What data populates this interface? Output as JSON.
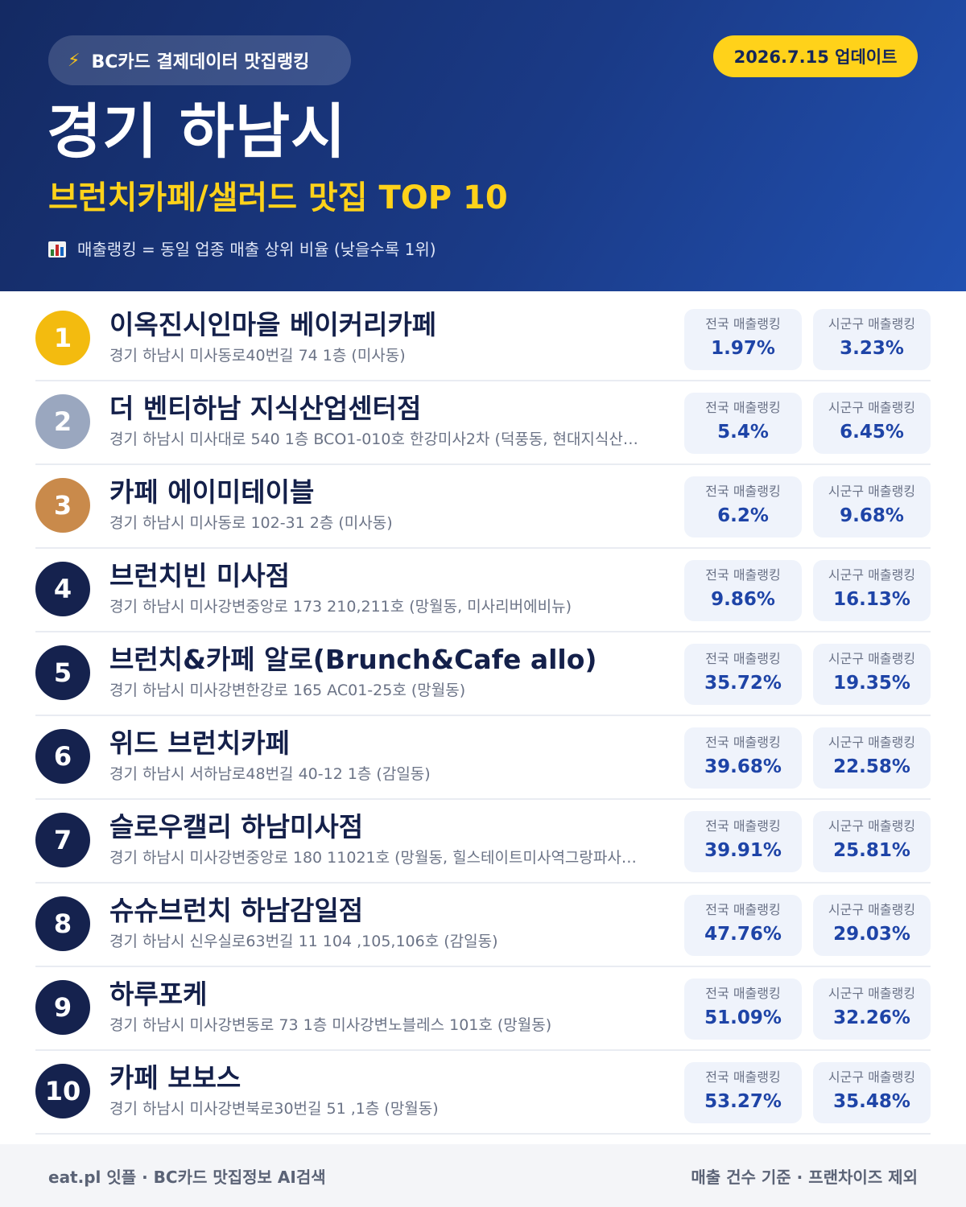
{
  "header": {
    "pill_icon": "lightning-bolt-icon",
    "pill_label": "BC카드 결제데이터 맛집랭킹",
    "update_label": "2026.7.15 업데이트",
    "city": "경기 하남시",
    "subtitle": "브런치카페/샐러드 맛집 TOP 10",
    "note_icon": "bar-chart-icon",
    "note": "매출랭킹 = 동일 업종 매출 상위 비율 (낮을수록 1위)"
  },
  "colors": {
    "header_start": "#142a63",
    "header_end": "#2150b0",
    "accent_yellow": "#ffd21a",
    "rank_gold": "#f3bb0f",
    "rank_silver": "#9aa7bf",
    "rank_bronze": "#c98a4b",
    "rank_default": "#15224e",
    "value_blue": "#1e44a7"
  },
  "stat_labels": {
    "national": "전국 매출랭킹",
    "district": "시군구 매출랭킹"
  },
  "items": [
    {
      "rank": "1",
      "name": "이옥진시인마을 베이커리카페",
      "address": "경기 하남시 미사동로40번길 74 1층 (미사동)",
      "national": "1.97%",
      "district": "3.23%"
    },
    {
      "rank": "2",
      "name": "더 벤티하남 지식산업센터점",
      "address": "경기 하남시 미사대로 540 1층 BCO1-010호 한강미사2차 (덕풍동, 현대지식산…",
      "national": "5.4%",
      "district": "6.45%"
    },
    {
      "rank": "3",
      "name": "카페 에이미테이블",
      "address": "경기 하남시 미사동로 102-31 2층 (미사동)",
      "national": "6.2%",
      "district": "9.68%"
    },
    {
      "rank": "4",
      "name": "브런치빈 미사점",
      "address": "경기 하남시 미사강변중앙로 173 210,211호 (망월동, 미사리버에비뉴)",
      "national": "9.86%",
      "district": "16.13%"
    },
    {
      "rank": "5",
      "name": "브런치&카페 알로(Brunch&Cafe allo)",
      "address": "경기 하남시 미사강변한강로 165 AC01-25호 (망월동)",
      "national": "35.72%",
      "district": "19.35%"
    },
    {
      "rank": "6",
      "name": "위드 브런치카페",
      "address": "경기 하남시 서하남로48번길 40-12 1층 (감일동)",
      "national": "39.68%",
      "district": "22.58%"
    },
    {
      "rank": "7",
      "name": "슬로우캘리 하남미사점",
      "address": "경기 하남시 미사강변중앙로 180 11021호 (망월동, 힐스테이트미사역그랑파사…",
      "national": "39.91%",
      "district": "25.81%"
    },
    {
      "rank": "8",
      "name": "슈슈브런치 하남감일점",
      "address": "경기 하남시 신우실로63번길 11 104 ,105,106호 (감일동)",
      "national": "47.76%",
      "district": "29.03%"
    },
    {
      "rank": "9",
      "name": "하루포케",
      "address": "경기 하남시 미사강변동로 73 1층 미사강변노블레스 101호 (망월동)",
      "national": "51.09%",
      "district": "32.26%"
    },
    {
      "rank": "10",
      "name": "카페 보보스",
      "address": "경기 하남시 미사강변북로30번길 51 ,1층 (망월동)",
      "national": "53.27%",
      "district": "35.48%"
    }
  ],
  "footer": {
    "left": "eat.pl 잇플 · BC카드 맛집정보 AI검색",
    "right": "매출 건수 기준 · 프랜차이즈 제외"
  }
}
